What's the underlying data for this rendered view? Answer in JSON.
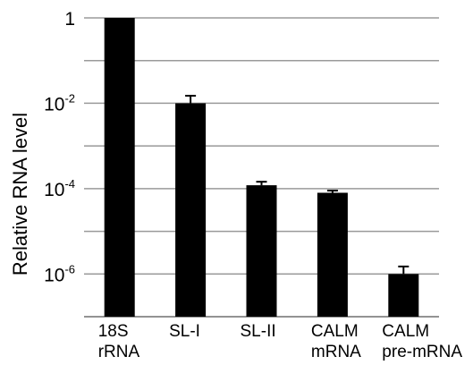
{
  "chart_data": {
    "type": "bar",
    "ylabel": "Relative RNA level",
    "yscale": "log10",
    "ylim": [
      1e-07,
      1
    ],
    "grid": true,
    "legend": "none",
    "colors": {
      "bar": "#000000",
      "grid": "#9a9a9a",
      "axis": "#808080"
    },
    "yticks": [
      {
        "value": 1,
        "base": "1",
        "exp": ""
      },
      {
        "value": 0.01,
        "base": "10",
        "exp": "-2"
      },
      {
        "value": 0.0001,
        "base": "10",
        "exp": "-4"
      },
      {
        "value": 1e-06,
        "base": "10",
        "exp": "-6"
      }
    ],
    "categories": [
      [
        "18S",
        "rRNA"
      ],
      [
        "SL-I"
      ],
      [
        "SL-II"
      ],
      [
        "CALM",
        "mRNA"
      ],
      [
        "CALM",
        "pre-mRNA"
      ]
    ],
    "values": [
      1,
      0.01,
      0.00012,
      8e-05,
      1e-06
    ],
    "error_upper": [
      1,
      0.015,
      0.000145,
      9e-05,
      1.5e-06
    ]
  }
}
